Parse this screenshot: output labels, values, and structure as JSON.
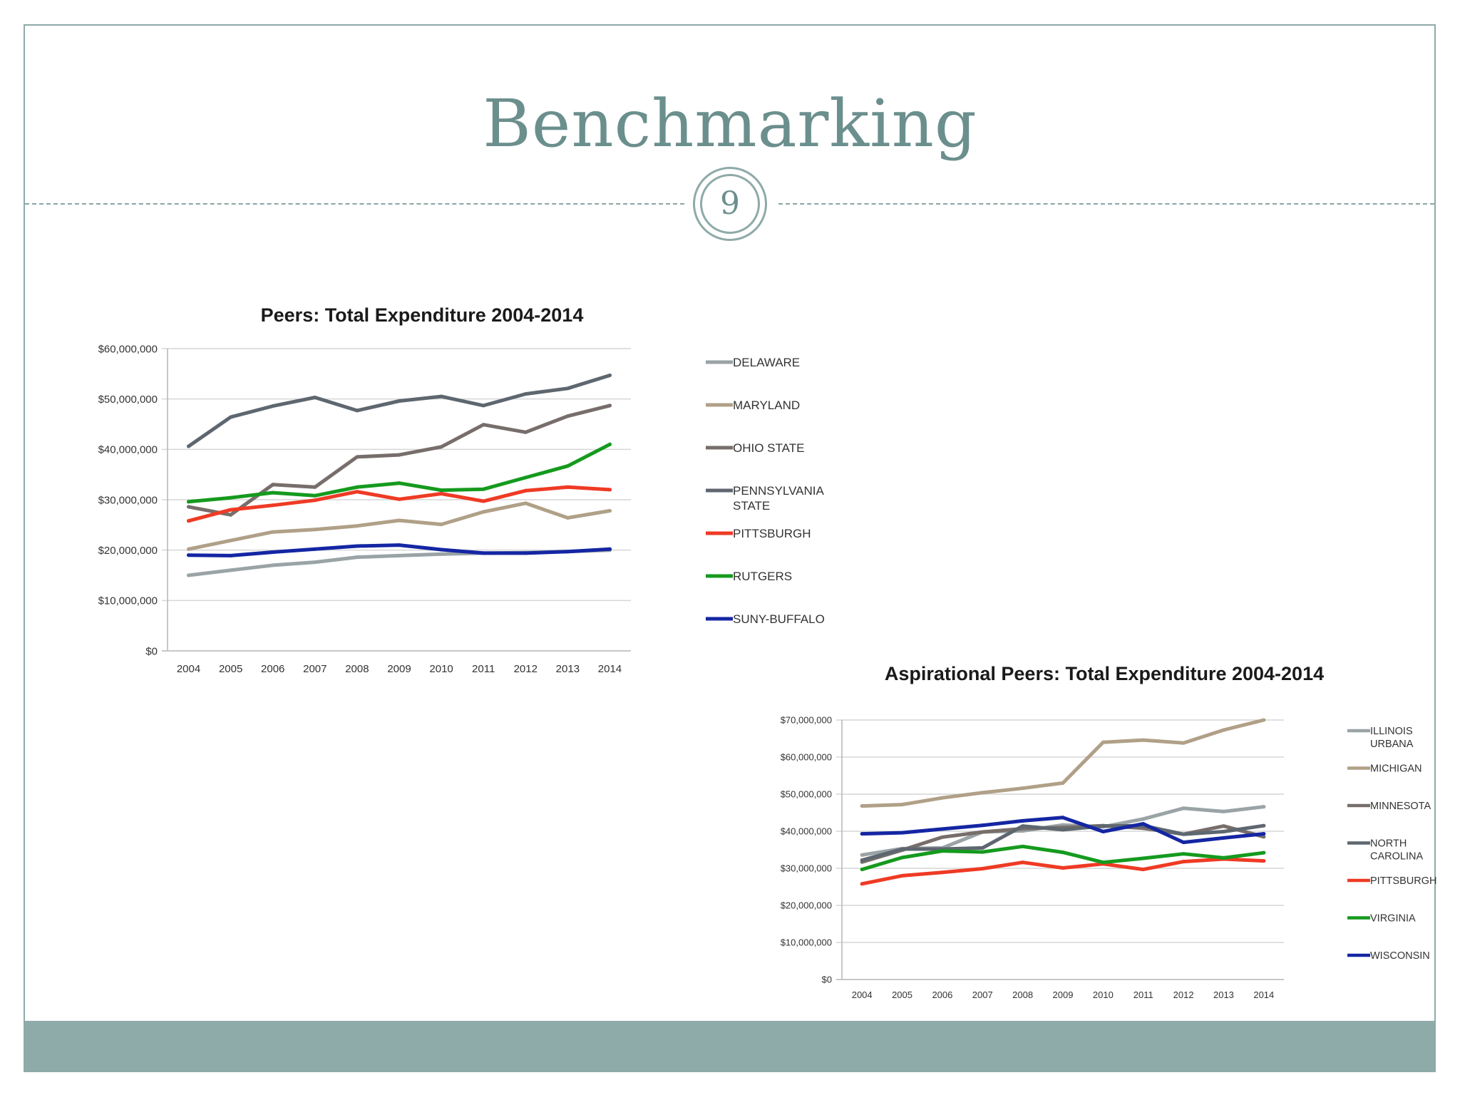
{
  "slide": {
    "title": "Benchmarking",
    "page_number": "9",
    "colors": {
      "accent": "#8eaaa9",
      "title": "#6b8f8d"
    }
  },
  "chart_data": [
    {
      "type": "line",
      "title": "Peers: Total Expenditure 2004-2014",
      "xlabel": "",
      "ylabel": "",
      "x": [
        "2004",
        "2005",
        "2006",
        "2007",
        "2008",
        "2009",
        "2010",
        "2011",
        "2012",
        "2013",
        "2014"
      ],
      "yticks": [
        "$0",
        "$10,000,000",
        "$20,000,000",
        "$30,000,000",
        "$40,000,000",
        "$50,000,000",
        "$60,000,000"
      ],
      "ylim": [
        0,
        60000000
      ],
      "grid": true,
      "legend_position": "right",
      "series": [
        {
          "name": "DELAWARE",
          "color": "#9aa3a6",
          "values": [
            15000000,
            16000000,
            17000000,
            17600000,
            18600000,
            18900000,
            19200000,
            19400000,
            19500000,
            19700000,
            20000000
          ]
        },
        {
          "name": "MARYLAND",
          "color": "#b0a087",
          "values": [
            20200000,
            21900000,
            23600000,
            24100000,
            24800000,
            25900000,
            25100000,
            27600000,
            29300000,
            26400000,
            27800000
          ]
        },
        {
          "name": "OHIO STATE",
          "color": "#776e6b",
          "values": [
            28600000,
            27000000,
            33000000,
            32500000,
            38500000,
            38900000,
            40500000,
            44900000,
            43400000,
            46600000,
            48700000
          ]
        },
        {
          "name": "PENNSYLVANIA STATE",
          "color": "#5e6770",
          "values": [
            40600000,
            46400000,
            48600000,
            50300000,
            47700000,
            49600000,
            50500000,
            48700000,
            51000000,
            52100000,
            54700000
          ]
        },
        {
          "name": "PITTSBURGH",
          "color": "#ef3a24",
          "values": [
            25800000,
            28000000,
            28900000,
            29900000,
            31600000,
            30100000,
            31200000,
            29700000,
            31800000,
            32500000,
            32000000
          ]
        },
        {
          "name": "RUTGERS",
          "color": "#159a1e",
          "values": [
            29600000,
            30400000,
            31400000,
            30800000,
            32500000,
            33300000,
            31900000,
            32100000,
            34400000,
            36700000,
            41000000
          ]
        },
        {
          "name": "SUNY-BUFFALO",
          "color": "#1426a3",
          "values": [
            19000000,
            18900000,
            19600000,
            20200000,
            20800000,
            21000000,
            20100000,
            19400000,
            19400000,
            19700000,
            20200000
          ]
        }
      ]
    },
    {
      "type": "line",
      "title": "Aspirational Peers: Total Expenditure 2004-2014",
      "xlabel": "",
      "ylabel": "",
      "x": [
        "2004",
        "2005",
        "2006",
        "2007",
        "2008",
        "2009",
        "2010",
        "2011",
        "2012",
        "2013",
        "2014"
      ],
      "yticks": [
        "$0",
        "$10,000,000",
        "$20,000,000",
        "$30,000,000",
        "$40,000,000",
        "$50,000,000",
        "$60,000,000",
        "$70,000,000"
      ],
      "ylim": [
        0,
        70000000
      ],
      "grid": true,
      "legend_position": "right",
      "series": [
        {
          "name": "ILLINOIS URBANA",
          "color": "#9aa3a6",
          "values": [
            33600000,
            35300000,
            35500000,
            39800000,
            40100000,
            41700000,
            41200000,
            43300000,
            46200000,
            45300000,
            46600000
          ]
        },
        {
          "name": "MICHIGAN",
          "color": "#b0a087",
          "values": [
            46800000,
            47200000,
            49000000,
            50400000,
            51600000,
            53000000,
            64000000,
            64600000,
            63800000,
            67300000,
            70000000
          ]
        },
        {
          "name": "MINNESOTA",
          "color": "#776e6b",
          "values": [
            31700000,
            34900000,
            38400000,
            39800000,
            40700000,
            41000000,
            41500000,
            40800000,
            39200000,
            41400000,
            38500000
          ]
        },
        {
          "name": "NORTH CAROLINA",
          "color": "#5e6770",
          "values": [
            32200000,
            35200000,
            35200000,
            35500000,
            41400000,
            40400000,
            41400000,
            41500000,
            39200000,
            39900000,
            41500000
          ]
        },
        {
          "name": "PITTSBURGH",
          "color": "#ef3a24",
          "values": [
            25800000,
            28000000,
            28900000,
            29900000,
            31600000,
            30100000,
            31200000,
            29700000,
            31800000,
            32500000,
            32000000
          ]
        },
        {
          "name": "VIRGINIA",
          "color": "#159a1e",
          "values": [
            29700000,
            32900000,
            34700000,
            34400000,
            35900000,
            34300000,
            31600000,
            32700000,
            33900000,
            32800000,
            34200000
          ]
        },
        {
          "name": "WISCONSIN",
          "color": "#1426a3",
          "values": [
            39300000,
            39600000,
            40600000,
            41600000,
            42800000,
            43700000,
            39900000,
            42000000,
            37000000,
            38200000,
            39300000
          ]
        }
      ]
    }
  ]
}
